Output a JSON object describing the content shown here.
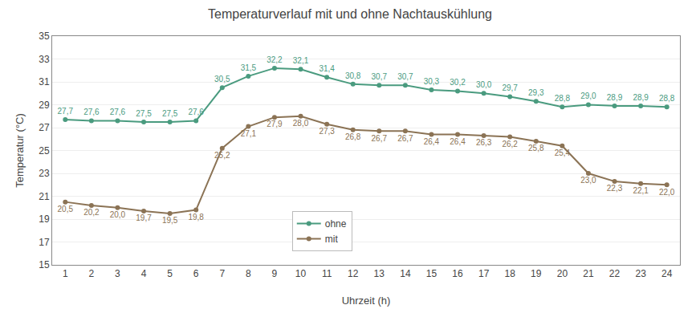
{
  "chart_data": {
    "type": "line",
    "title": "Temperaturverlauf mit und ohne Nachtauskühlung",
    "xlabel": "Uhrzeit (h)",
    "ylabel": "Temperatur (°C)",
    "x": [
      1,
      2,
      3,
      4,
      5,
      6,
      7,
      8,
      9,
      10,
      11,
      12,
      13,
      14,
      15,
      16,
      17,
      18,
      19,
      20,
      21,
      22,
      23,
      24
    ],
    "series": [
      {
        "name": "ohne",
        "color": "#4a9b7f",
        "marker": "circle",
        "values": [
          27.7,
          27.6,
          27.6,
          27.5,
          27.5,
          27.6,
          30.5,
          31.5,
          32.2,
          32.1,
          31.4,
          30.8,
          30.7,
          30.7,
          30.3,
          30.2,
          30.0,
          29.7,
          29.3,
          28.8,
          29.0,
          28.9,
          28.9,
          28.8
        ],
        "value_labels": [
          "27,7",
          "27,6",
          "27,6",
          "27,5",
          "27,5",
          "27,6",
          "30,5",
          "31,5",
          "32,2",
          "32,1",
          "31,4",
          "30,8",
          "30,7",
          "30,7",
          "30,3",
          "30,2",
          "30,0",
          "29,7",
          "29,3",
          "28,8",
          "29,0",
          "28,9",
          "28,9",
          "28,8"
        ]
      },
      {
        "name": "mit",
        "color": "#8b7355",
        "marker": "circle",
        "values": [
          20.5,
          20.2,
          20.0,
          19.7,
          19.5,
          19.8,
          25.2,
          27.1,
          27.9,
          28.0,
          27.3,
          26.8,
          26.7,
          26.7,
          26.4,
          26.4,
          26.3,
          26.2,
          25.8,
          25.4,
          23.0,
          22.3,
          22.1,
          22.0
        ],
        "value_labels": [
          "20,5",
          "20,2",
          "20,0",
          "19,7",
          "19,5",
          "19,8",
          "25,2",
          "27,1",
          "27,9",
          "28,0",
          "27,3",
          "26,8",
          "26,7",
          "26,7",
          "26,4",
          "26,4",
          "26,3",
          "26,2",
          "25,8",
          "25,4",
          "23,0",
          "22,3",
          "22,1",
          "22,0"
        ]
      }
    ],
    "xlim": [
      0.5,
      24.5
    ],
    "xticks": [
      1,
      2,
      3,
      4,
      5,
      6,
      7,
      8,
      9,
      10,
      11,
      12,
      13,
      14,
      15,
      16,
      17,
      18,
      19,
      20,
      21,
      22,
      23,
      24
    ],
    "ylim": [
      15,
      35
    ],
    "yticks": [
      15,
      17,
      19,
      21,
      23,
      25,
      27,
      29,
      31,
      33,
      35
    ],
    "grid": true,
    "legend": "bottom",
    "data_labels": true
  }
}
